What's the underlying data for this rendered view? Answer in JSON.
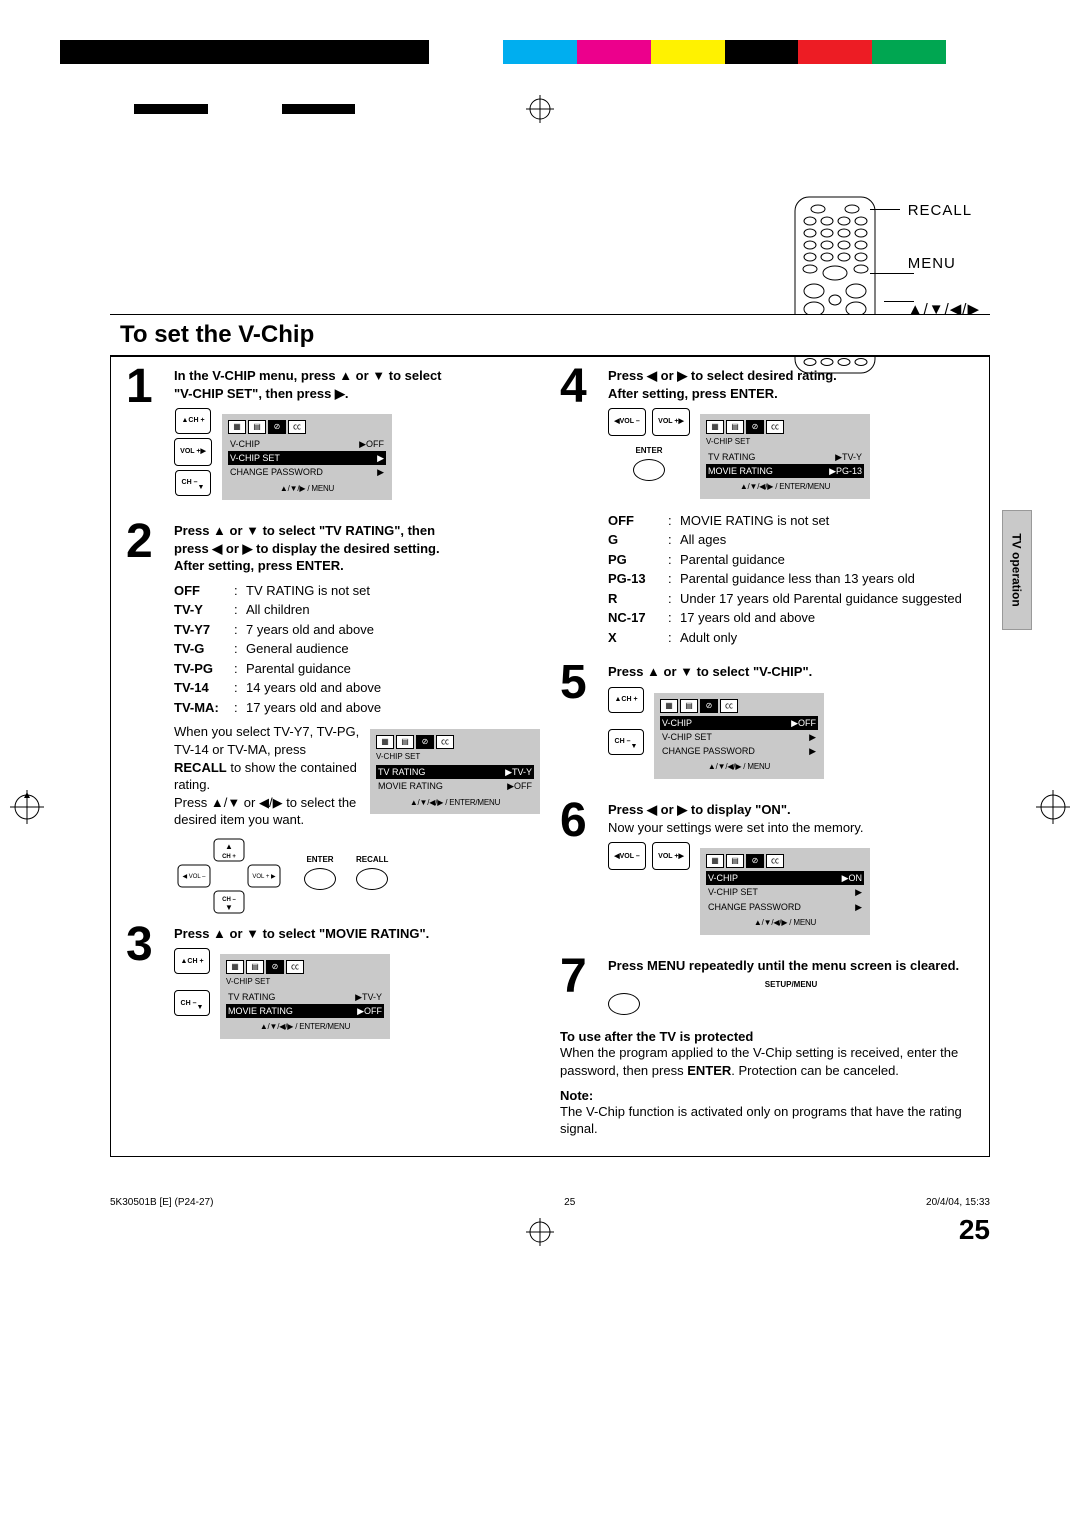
{
  "page": {
    "title": "To set the V-Chip",
    "number": "25",
    "side_tab": "TV operation",
    "footer_left": "5K30501B [E] (P24-27)",
    "footer_center": "25",
    "footer_right": "20/4/04, 15:33"
  },
  "color_bar": [
    "#000000",
    "#000000",
    "#000000",
    "#000000",
    "#000000",
    "#ffffff",
    "#00aeef",
    "#ec008c",
    "#fff200",
    "#000000",
    "#ed1c24",
    "#00a651",
    "#ffffff"
  ],
  "color_bar2": [
    "#ffffff",
    "#000000",
    "#ffffff",
    "#000000",
    "#ffffff",
    "#ffffff",
    "#ffffff",
    "#ffffff",
    "#ffffff",
    "#ffffff",
    "#ffffff",
    "#ffffff",
    "#ffffff"
  ],
  "remote_labels": [
    "RECALL",
    "MENU",
    "▲/▼/◀/▶",
    "ENTER"
  ],
  "steps": {
    "s1": {
      "text_a": "In the V-CHIP menu, press ▲ or ▼ to select",
      "text_b": "\"V-CHIP SET\", then press ▶.",
      "osd": {
        "rows": [
          {
            "l": "V-CHIP",
            "r": "▶OFF",
            "hl": false
          },
          {
            "l": "V-CHIP SET",
            "r": "▶",
            "hl": true
          },
          {
            "l": "CHANGE PASSWORD",
            "r": "▶",
            "hl": false
          }
        ],
        "foot": "▲/▼/▶ / MENU"
      }
    },
    "s2": {
      "text_a": "Press ▲ or ▼ to select \"TV RATING\", then",
      "text_b": "press ◀ or ▶ to display the desired setting.",
      "text_c": "After setting, press ENTER.",
      "ratings": [
        {
          "k": "OFF",
          "v": "TV RATING is not set"
        },
        {
          "k": "TV-Y",
          "v": "All children"
        },
        {
          "k": "TV-Y7",
          "v": "7 years old and above"
        },
        {
          "k": "TV-G",
          "v": "General audience"
        },
        {
          "k": "TV-PG",
          "v": "Parental guidance"
        },
        {
          "k": "TV-14",
          "v": "14 years old and above"
        },
        {
          "k": "TV-MA:",
          "v": "17 years old and above"
        }
      ],
      "para": "When you select TV-Y7, TV-PG, TV-14 or TV-MA, press",
      "para_b": " to show the contained rating.",
      "recall_word": "RECALL",
      "para_c": "Press ▲/▼ or ◀/▶ to select the desired item you want.",
      "osd": {
        "title": "V-CHIP SET",
        "rows": [
          {
            "l": "TV RATING",
            "r": "▶TV-Y",
            "hl": true
          },
          {
            "l": "MOVIE RATING",
            "r": "▶OFF",
            "hl": false
          }
        ],
        "foot": "▲/▼/◀/▶ / ENTER/MENU"
      }
    },
    "s3": {
      "text": "Press ▲ or ▼ to select \"MOVIE RATING\".",
      "osd": {
        "title": "V-CHIP SET",
        "rows": [
          {
            "l": "TV RATING",
            "r": "▶TV-Y",
            "hl": false
          },
          {
            "l": "MOVIE RATING",
            "r": "▶OFF",
            "hl": true
          }
        ],
        "foot": "▲/▼/◀/▶ / ENTER/MENU"
      }
    },
    "s4": {
      "text_a": "Press ◀ or ▶ to select desired rating.",
      "text_b": "After setting, press ENTER.",
      "osd": {
        "title": "V-CHIP SET",
        "rows": [
          {
            "l": "TV RATING",
            "r": "▶TV-Y",
            "hl": false
          },
          {
            "l": "MOVIE RATING",
            "r": "▶PG-13",
            "hl": true
          }
        ],
        "foot": "▲/▼/◀/▶ / ENTER/MENU"
      },
      "ratings": [
        {
          "k": "OFF",
          "v": "MOVIE RATING is not set"
        },
        {
          "k": "G",
          "v": "All ages"
        },
        {
          "k": "PG",
          "v": "Parental guidance"
        },
        {
          "k": "PG-13",
          "v": "Parental guidance less than 13 years old"
        },
        {
          "k": "R",
          "v": "Under 17 years old Parental guidance suggested"
        },
        {
          "k": "NC-17",
          "v": "17 years old and above"
        },
        {
          "k": "X",
          "v": "Adult only"
        }
      ]
    },
    "s5": {
      "text": "Press ▲ or ▼ to select \"V-CHIP\".",
      "osd": {
        "rows": [
          {
            "l": "V-CHIP",
            "r": "▶OFF",
            "hl": true
          },
          {
            "l": "V-CHIP SET",
            "r": "▶",
            "hl": false
          },
          {
            "l": "CHANGE PASSWORD",
            "r": "▶",
            "hl": false
          }
        ],
        "foot": "▲/▼/◀/▶ / MENU"
      }
    },
    "s6": {
      "text_a": "Press ◀ or ▶ to display \"ON\".",
      "text_b": "Now your settings were set into the memory.",
      "osd": {
        "rows": [
          {
            "l": "V-CHIP",
            "r": "▶ON",
            "hl": true
          },
          {
            "l": "V-CHIP SET",
            "r": "▶",
            "hl": false
          },
          {
            "l": "CHANGE PASSWORD",
            "r": "▶",
            "hl": false
          }
        ],
        "foot": "▲/▼/◀/▶ / MENU"
      }
    },
    "s7": {
      "text": "Press MENU repeatedly until the menu screen is cleared.",
      "btn_label": "SETUP/MENU"
    }
  },
  "after_note": {
    "title": "To use after the TV is protected",
    "body": "When the program applied to the V-Chip setting is received, enter the password, then press ",
    "enter_word": "ENTER",
    "body2": ". Protection can be canceled.",
    "note_label": "Note:",
    "note_body": "The V-Chip function is activated only on programs that have the rating signal."
  },
  "buttons": {
    "ch_plus": "CH +",
    "ch_minus": "CH –",
    "vol_plus": "VOL +",
    "vol_minus": "VOL –",
    "enter": "ENTER",
    "recall": "RECALL"
  }
}
